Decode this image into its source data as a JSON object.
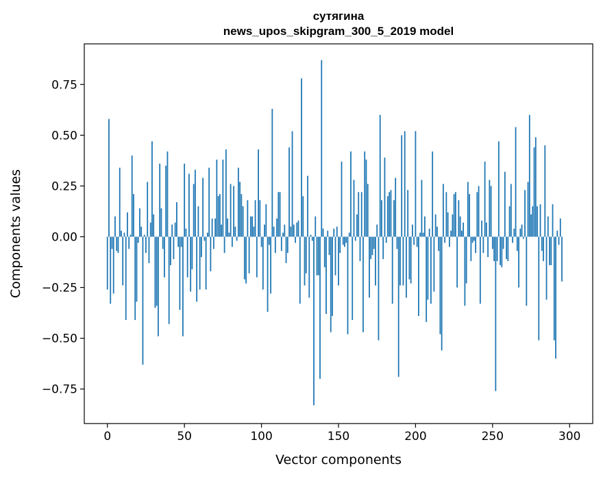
{
  "chart_data": {
    "type": "bar",
    "title": "сутягина",
    "subtitle": "news_upos_skipgram_300_5_2019 model",
    "xlabel": "Vector components",
    "ylabel": "Components values",
    "xlim": [
      -15,
      315
    ],
    "ylim": [
      -0.92,
      0.95
    ],
    "xticks": [
      0,
      50,
      100,
      150,
      200,
      250,
      300
    ],
    "xtick_labels": [
      "0",
      "50",
      "100",
      "150",
      "200",
      "250",
      "300"
    ],
    "yticks": [
      -0.75,
      -0.5,
      -0.25,
      0.0,
      0.25,
      0.5,
      0.75
    ],
    "ytick_labels": [
      "−0.75",
      "−0.50",
      "−0.25",
      "0.00",
      "0.25",
      "0.50",
      "0.75"
    ],
    "bar_color": "#1f77b4",
    "values": [
      -0.26,
      0.58,
      -0.33,
      -0.06,
      -0.28,
      0.1,
      -0.07,
      -0.08,
      0.34,
      0.03,
      -0.24,
      0.02,
      -0.41,
      0.12,
      -0.06,
      0.01,
      0.4,
      0.21,
      -0.41,
      -0.32,
      -0.03,
      0.14,
      0.05,
      -0.63,
      0.01,
      -0.08,
      0.27,
      -0.13,
      0.07,
      0.47,
      0.11,
      -0.35,
      -0.34,
      -0.49,
      0.36,
      0.14,
      -0.06,
      -0.2,
      0.35,
      0.42,
      -0.43,
      -0.14,
      0.06,
      -0.11,
      0.07,
      0.17,
      -0.05,
      -0.36,
      -0.05,
      -0.49,
      0.36,
      0.04,
      -0.2,
      0.31,
      -0.27,
      -0.16,
      0.26,
      0.33,
      -0.32,
      0.15,
      -0.26,
      -0.1,
      0.29,
      -0.02,
      -0.26,
      0.02,
      0.34,
      -0.17,
      0.09,
      -0.06,
      0.09,
      0.38,
      0.2,
      0.21,
      0.06,
      0.38,
      -0.08,
      0.43,
      0.09,
      0.02,
      0.26,
      -0.05,
      0.25,
      0.05,
      -0.02,
      0.34,
      0.27,
      0.21,
      0.15,
      -0.21,
      -0.23,
      0.18,
      -0.18,
      0.1,
      0.1,
      0.05,
      0.18,
      -0.2,
      0.43,
      0.18,
      -0.05,
      -0.26,
      0.06,
      0.16,
      -0.37,
      -0.04,
      -0.28,
      0.63,
      0.05,
      -0.08,
      0.09,
      0.22,
      0.22,
      -0.07,
      0.02,
      0.06,
      -0.13,
      -0.08,
      0.44,
      0.05,
      0.52,
      0.06,
      -0.03,
      0.07,
      0.08,
      -0.33,
      0.78,
      0.2,
      -0.24,
      -0.18,
      0.3,
      -0.3,
      0.01,
      -0.02,
      -0.83,
      0.1,
      -0.19,
      -0.19,
      -0.7,
      0.87,
      0.04,
      -0.15,
      -0.38,
      0.03,
      -0.09,
      -0.47,
      -0.39,
      0.04,
      -0.19,
      0.05,
      -0.24,
      -0.08,
      0.37,
      -0.04,
      -0.05,
      -0.03,
      -0.48,
      0.02,
      0.42,
      -0.41,
      0.28,
      -0.02,
      0.11,
      0.22,
      -0.12,
      0.22,
      -0.47,
      0.42,
      0.38,
      0.26,
      -0.3,
      -0.11,
      -0.09,
      -0.06,
      -0.24,
      0.06,
      -0.51,
      0.6,
      0.18,
      -0.11,
      0.39,
      -0.03,
      0.2,
      0.22,
      0.23,
      -0.33,
      0.18,
      0.29,
      -0.06,
      -0.69,
      -0.24,
      0.5,
      -0.24,
      0.52,
      -0.3,
      0.23,
      -0.21,
      -0.23,
      0.06,
      -0.04,
      0.52,
      -0.05,
      -0.39,
      0.02,
      0.28,
      0.02,
      0.1,
      -0.42,
      -0.31,
      0.04,
      -0.33,
      0.42,
      -0.27,
      0.11,
      0.05,
      -0.07,
      -0.48,
      -0.56,
      0.26,
      -0.03,
      0.22,
      0.12,
      -0.05,
      0.03,
      0.11,
      0.21,
      0.22,
      -0.25,
      0.18,
      0.1,
      0.03,
      0.07,
      -0.34,
      -0.23,
      0.27,
      0.21,
      -0.12,
      -0.03,
      -0.02,
      -0.08,
      0.22,
      0.25,
      -0.33,
      0.08,
      -0.08,
      0.37,
      0.07,
      -0.1,
      0.28,
      0.25,
      -0.06,
      -0.12,
      -0.76,
      -0.12,
      0.47,
      -0.14,
      -0.15,
      -0.06,
      0.32,
      -0.11,
      -0.12,
      0.15,
      0.26,
      -0.03,
      0.04,
      0.54,
      -0.07,
      -0.25,
      0.04,
      0.06,
      -0.01,
      0.23,
      -0.34,
      0.27,
      0.6,
      0.11,
      0.15,
      0.44,
      0.49,
      0.15,
      -0.51,
      0.16,
      -0.07,
      -0.12,
      0.45,
      -0.31,
      0.1,
      -0.14,
      -0.14,
      0.16,
      -0.51,
      -0.6,
      0.03,
      -0.04,
      0.09,
      -0.22
    ]
  }
}
